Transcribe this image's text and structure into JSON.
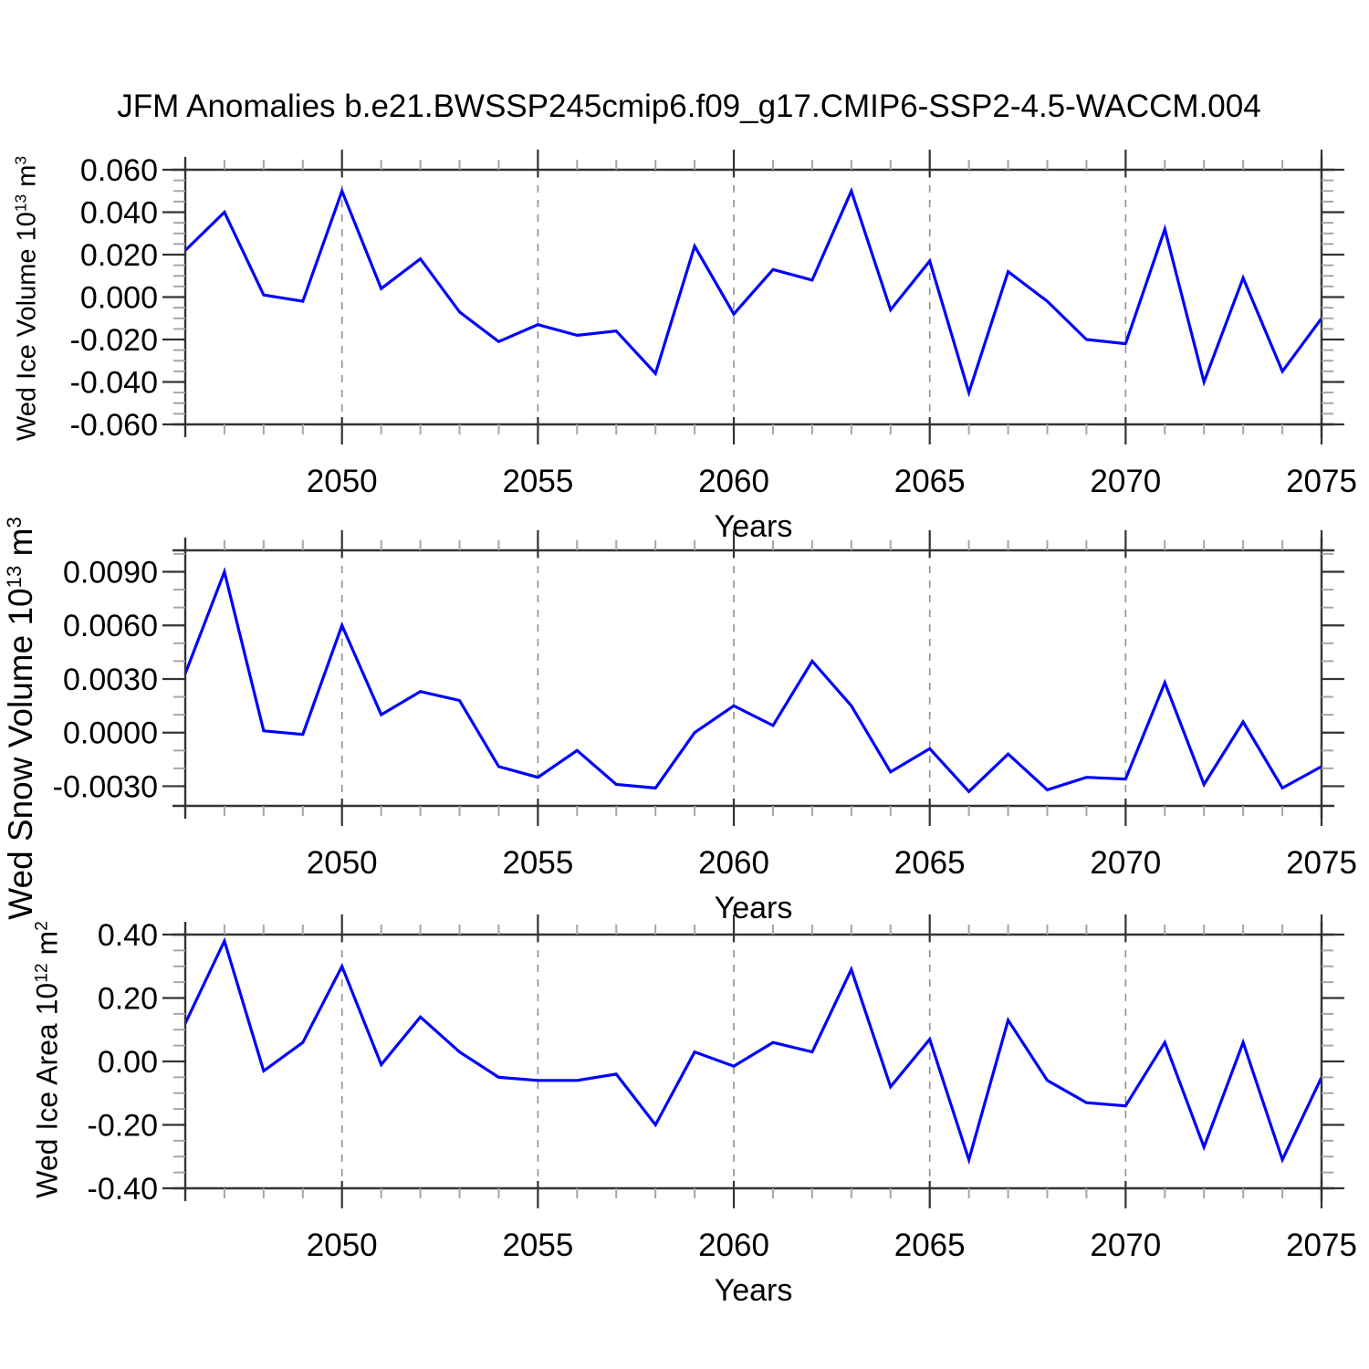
{
  "title": "JFM Anomalies b.e21.BWSSP245cmip6.f09_g17.CMIP6-SSP2-4.5-WACCM.004",
  "colors": {
    "line": "#0000ff",
    "axis": "#333333",
    "major_tick": "#333333",
    "minor_tick": "#a6a6a6",
    "gridline": "#909090",
    "text": "#000000",
    "background": "#ffffff"
  },
  "chart_data": [
    {
      "type": "line",
      "id": "wed-ice-volume",
      "ylabel": {
        "prefix": "Wed Ice Volume 10",
        "sup1": "13",
        "mid": " m",
        "sup2": "3"
      },
      "xlabel": "Years",
      "x": [
        2046,
        2047,
        2048,
        2049,
        2050,
        2051,
        2052,
        2053,
        2054,
        2055,
        2056,
        2057,
        2058,
        2059,
        2060,
        2061,
        2062,
        2063,
        2064,
        2065,
        2066,
        2067,
        2068,
        2069,
        2070,
        2071,
        2072,
        2073,
        2074,
        2075
      ],
      "values": [
        0.022,
        0.04,
        0.001,
        -0.002,
        0.05,
        0.004,
        0.018,
        -0.007,
        -0.021,
        -0.013,
        -0.018,
        -0.016,
        -0.036,
        0.024,
        -0.008,
        0.013,
        0.008,
        0.05,
        -0.006,
        0.017,
        -0.045,
        0.012,
        -0.002,
        -0.02,
        -0.022,
        0.032,
        -0.04,
        0.009,
        -0.035,
        -0.01
      ],
      "xlim": [
        2046,
        2075
      ],
      "ylim": [
        -0.06,
        0.06
      ],
      "xticks": [
        2050,
        2055,
        2060,
        2065,
        2070,
        2075
      ],
      "xtick_labels": [
        "2050",
        "2055",
        "2060",
        "2065",
        "2070",
        "2075"
      ],
      "xminor_step": 1,
      "yticks": [
        0.06,
        0.04,
        0.02,
        0.0,
        -0.02,
        -0.04,
        -0.06
      ],
      "ytick_labels": [
        "0.060",
        "0.040",
        "0.020",
        "0.000",
        "-0.020",
        "-0.040",
        "-0.060"
      ],
      "yminor_step": 0.005,
      "grid_x_dashed": [
        2050,
        2055,
        2060,
        2065,
        2070
      ],
      "legend": "none",
      "grid": "vertical-dashed-only"
    },
    {
      "type": "line",
      "id": "wed-snow-volume",
      "ylabel": {
        "prefix": "Wed Snow Volume 10",
        "sup1": "13",
        "mid": " m",
        "sup2": "3"
      },
      "xlabel": "Years",
      "x": [
        2046,
        2047,
        2048,
        2049,
        2050,
        2051,
        2052,
        2053,
        2054,
        2055,
        2056,
        2057,
        2058,
        2059,
        2060,
        2061,
        2062,
        2063,
        2064,
        2065,
        2066,
        2067,
        2068,
        2069,
        2070,
        2071,
        2072,
        2073,
        2074,
        2075
      ],
      "values": [
        0.0033,
        0.009,
        0.0001,
        -0.0001,
        0.006,
        0.001,
        0.0023,
        0.0018,
        -0.0019,
        -0.0025,
        -0.001,
        -0.0029,
        -0.0031,
        0.0,
        0.0015,
        0.0004,
        0.004,
        0.0015,
        -0.0022,
        -0.0009,
        -0.0033,
        -0.0012,
        -0.0032,
        -0.0025,
        -0.0026,
        0.0028,
        -0.0029,
        0.0006,
        -0.0031,
        -0.0019
      ],
      "xlim": [
        2046,
        2075
      ],
      "ylim": [
        -0.0041,
        0.0102
      ],
      "xticks": [
        2050,
        2055,
        2060,
        2065,
        2070,
        2075
      ],
      "xtick_labels": [
        "2050",
        "2055",
        "2060",
        "2065",
        "2070",
        "2075"
      ],
      "xminor_step": 1,
      "yticks": [
        0.009,
        0.006,
        0.003,
        0.0,
        -0.003
      ],
      "ytick_labels": [
        "0.0090",
        "0.0060",
        "0.0030",
        "0.0000",
        "-0.0030"
      ],
      "yminor_step": 0.001,
      "grid_x_dashed": [
        2050,
        2055,
        2060,
        2065,
        2070
      ],
      "legend": "none",
      "grid": "vertical-dashed-only"
    },
    {
      "type": "line",
      "id": "wed-ice-area",
      "ylabel": {
        "prefix": "Wed Ice Area 10",
        "sup1": "12",
        "mid": " m",
        "sup2": "2"
      },
      "xlabel": "Years",
      "x": [
        2046,
        2047,
        2048,
        2049,
        2050,
        2051,
        2052,
        2053,
        2054,
        2055,
        2056,
        2057,
        2058,
        2059,
        2060,
        2061,
        2062,
        2063,
        2064,
        2065,
        2066,
        2067,
        2068,
        2069,
        2070,
        2071,
        2072,
        2073,
        2074,
        2075
      ],
      "values": [
        0.12,
        0.38,
        -0.03,
        0.06,
        0.3,
        -0.01,
        0.14,
        0.03,
        -0.05,
        -0.06,
        -0.06,
        -0.04,
        -0.2,
        0.03,
        -0.015,
        0.06,
        0.03,
        0.29,
        -0.08,
        0.07,
        -0.31,
        0.13,
        -0.06,
        -0.13,
        -0.14,
        0.06,
        -0.27,
        0.06,
        -0.31,
        -0.05
      ],
      "xlim": [
        2046,
        2075
      ],
      "ylim": [
        -0.4,
        0.4
      ],
      "xticks": [
        2050,
        2055,
        2060,
        2065,
        2070,
        2075
      ],
      "xtick_labels": [
        "2050",
        "2055",
        "2060",
        "2065",
        "2070",
        "2075"
      ],
      "xminor_step": 1,
      "yticks": [
        0.4,
        0.2,
        0.0,
        -0.2,
        -0.4
      ],
      "ytick_labels": [
        "0.40",
        "0.20",
        "0.00",
        "-0.20",
        "-0.40"
      ],
      "yminor_step": 0.05,
      "grid_x_dashed": [
        2050,
        2055,
        2060,
        2065,
        2070
      ],
      "legend": "none",
      "grid": "vertical-dashed-only"
    }
  ]
}
